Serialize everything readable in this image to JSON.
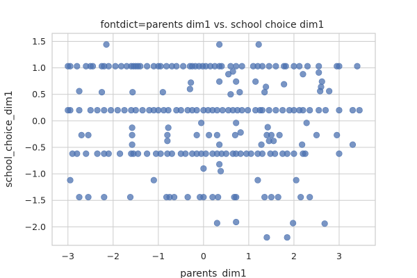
{
  "chart_data": {
    "type": "scatter",
    "title": "fontdict=parents dim1 vs. school choice dim1",
    "xlabel": "parents_dim1",
    "ylabel": "school_choice_dim1",
    "xlim": [
      -3.35,
      3.8
    ],
    "ylim": [
      -2.35,
      1.65
    ],
    "xticks": [
      -3,
      -2,
      -1,
      0,
      1,
      2,
      3
    ],
    "xtick_labels": [
      "−3",
      "−2",
      "−1",
      "0",
      "1",
      "2",
      "3"
    ],
    "yticks": [
      1.5,
      1.0,
      0.5,
      0.0,
      -0.5,
      -1.0,
      -1.5,
      -2.0
    ],
    "ytick_labels": [
      "1.5",
      "1.0",
      "0.5",
      "0.0",
      "−0.5",
      "−1.0",
      "−1.5",
      "−2.0"
    ],
    "grid": true,
    "color": "#4c72b0",
    "x": [
      -2.15,
      0.35,
      1.22,
      -3.0,
      -2.95,
      -2.8,
      -2.6,
      -2.5,
      -2.45,
      -2.25,
      -2.2,
      -2.1,
      -1.95,
      -1.82,
      -1.7,
      -1.6,
      -1.55,
      -1.5,
      -1.45,
      -1.4,
      -1.25,
      -1.1,
      -1.0,
      -0.95,
      -0.82,
      -0.7,
      -0.6,
      -0.45,
      -0.3,
      -0.25,
      -0.18,
      -0.1,
      -0.02,
      0.05,
      0.15,
      0.25,
      0.35,
      0.4,
      0.6,
      0.72,
      0.85,
      1.1,
      1.2,
      1.3,
      1.45,
      1.6,
      1.78,
      1.82,
      2.0,
      2.12,
      2.3,
      2.55,
      2.95,
      3.0,
      3.4,
      0.55,
      0.65,
      2.2,
      2.55,
      0.35,
      1.15,
      0.72,
      1.78,
      2.62,
      1.38,
      2.6,
      -0.28,
      -2.75,
      -2.25,
      -1.57,
      -0.9,
      -0.3,
      0.8,
      1.35,
      2.58,
      2.78,
      0.6,
      -3.0,
      -2.95,
      -2.75,
      -2.5,
      -2.35,
      -2.2,
      -2.05,
      -1.9,
      -1.75,
      -1.6,
      -1.5,
      -1.35,
      -1.2,
      -1.1,
      -1.0,
      -0.88,
      -0.78,
      -0.6,
      -0.5,
      -0.35,
      -0.25,
      -0.15,
      0.0,
      0.1,
      0.2,
      0.3,
      0.42,
      0.55,
      0.65,
      0.75,
      0.85,
      0.98,
      1.15,
      1.25,
      1.3,
      1.45,
      1.6,
      1.75,
      1.9,
      2.0,
      2.12,
      2.2,
      2.35,
      2.55,
      2.7,
      3.0,
      3.3,
      3.45,
      -1.58,
      -0.78,
      -0.05,
      0.72,
      1.42,
      2.28,
      -2.7,
      -2.55,
      -1.58,
      -0.8,
      -0.15,
      0.12,
      0.3,
      0.7,
      0.82,
      1.4,
      1.5,
      1.68,
      2.5,
      2.95,
      -1.58,
      -0.8,
      0.35,
      1.28,
      1.45,
      1.55,
      2.18,
      3.3,
      -2.9,
      -2.8,
      -2.6,
      -2.35,
      -2.2,
      -2.1,
      -1.85,
      -1.6,
      -1.55,
      -1.45,
      -1.25,
      -1.05,
      -0.95,
      -0.8,
      -0.7,
      -0.5,
      -0.4,
      -0.25,
      -0.15,
      -0.05,
      0.05,
      0.2,
      0.3,
      0.4,
      0.5,
      0.65,
      0.72,
      0.82,
      0.95,
      1.05,
      1.2,
      1.3,
      1.48,
      1.58,
      1.75,
      1.85,
      2.0,
      2.2,
      2.25,
      3.0,
      0.0,
      0.35,
      0.38,
      -2.95,
      -1.1,
      1.2,
      2.05,
      -2.75,
      -2.55,
      -2.2,
      -1.62,
      -0.82,
      -0.75,
      -0.65,
      -0.35,
      -0.08,
      0.0,
      0.2,
      0.32,
      0.68,
      0.72,
      1.35,
      1.5,
      1.65,
      2.15,
      2.35,
      0.3,
      0.72,
      1.98,
      2.68,
      1.4,
      1.85
    ],
    "y": [
      1.44,
      1.44,
      1.44,
      1.03,
      1.03,
      1.03,
      1.03,
      1.03,
      1.03,
      1.03,
      1.03,
      1.03,
      1.03,
      1.03,
      1.03,
      1.03,
      1.03,
      1.03,
      1.03,
      1.03,
      1.03,
      1.03,
      1.03,
      1.03,
      1.03,
      1.03,
      1.03,
      1.03,
      1.03,
      1.03,
      1.03,
      1.03,
      1.03,
      1.03,
      1.03,
      1.03,
      1.03,
      1.03,
      1.03,
      1.03,
      1.03,
      1.03,
      1.03,
      1.03,
      1.03,
      1.03,
      1.03,
      1.03,
      1.03,
      1.03,
      1.03,
      1.03,
      1.03,
      1.03,
      1.03,
      0.88,
      0.93,
      0.88,
      0.91,
      0.74,
      0.74,
      0.74,
      0.69,
      0.74,
      0.64,
      0.64,
      0.72,
      0.56,
      0.54,
      0.54,
      0.54,
      0.6,
      0.54,
      0.54,
      0.56,
      0.56,
      0.5,
      0.2,
      0.2,
      0.2,
      0.2,
      0.2,
      0.2,
      0.2,
      0.2,
      0.2,
      0.2,
      0.2,
      0.2,
      0.2,
      0.2,
      0.2,
      0.2,
      0.2,
      0.2,
      0.2,
      0.2,
      0.2,
      0.2,
      0.2,
      0.2,
      0.2,
      0.2,
      0.2,
      0.2,
      0.2,
      0.2,
      0.2,
      0.2,
      0.2,
      0.2,
      0.2,
      0.2,
      0.2,
      0.2,
      0.2,
      0.2,
      0.2,
      0.2,
      0.2,
      0.2,
      0.2,
      0.2,
      0.2,
      0.2,
      -0.13,
      -0.13,
      -0.04,
      -0.04,
      -0.12,
      -0.04,
      -0.27,
      -0.27,
      -0.27,
      -0.27,
      -0.27,
      -0.27,
      -0.27,
      -0.27,
      -0.22,
      -0.27,
      -0.27,
      -0.27,
      -0.27,
      -0.27,
      -0.45,
      -0.38,
      -0.45,
      -0.45,
      -0.38,
      -0.38,
      -0.45,
      -0.45,
      -0.62,
      -0.62,
      -0.62,
      -0.62,
      -0.62,
      -0.62,
      -0.62,
      -0.62,
      -0.62,
      -0.62,
      -0.62,
      -0.62,
      -0.62,
      -0.62,
      -0.62,
      -0.62,
      -0.62,
      -0.62,
      -0.62,
      -0.62,
      -0.62,
      -0.62,
      -0.62,
      -0.62,
      -0.62,
      -0.62,
      -0.62,
      -0.62,
      -0.62,
      -0.62,
      -0.62,
      -0.62,
      -0.62,
      -0.62,
      -0.62,
      -0.62,
      -0.62,
      -0.62,
      -0.62,
      -0.62,
      -0.9,
      -0.82,
      -0.95,
      -1.12,
      -1.12,
      -1.12,
      -1.12,
      -1.44,
      -1.44,
      -1.44,
      -1.44,
      -1.44,
      -1.44,
      -1.44,
      -1.44,
      -1.44,
      -1.44,
      -1.44,
      -1.44,
      -1.44,
      -1.44,
      -1.44,
      -1.44,
      -1.44,
      -1.44,
      -1.44,
      -1.93,
      -1.91,
      -1.93,
      -1.94,
      -2.2,
      -2.2
    ]
  }
}
